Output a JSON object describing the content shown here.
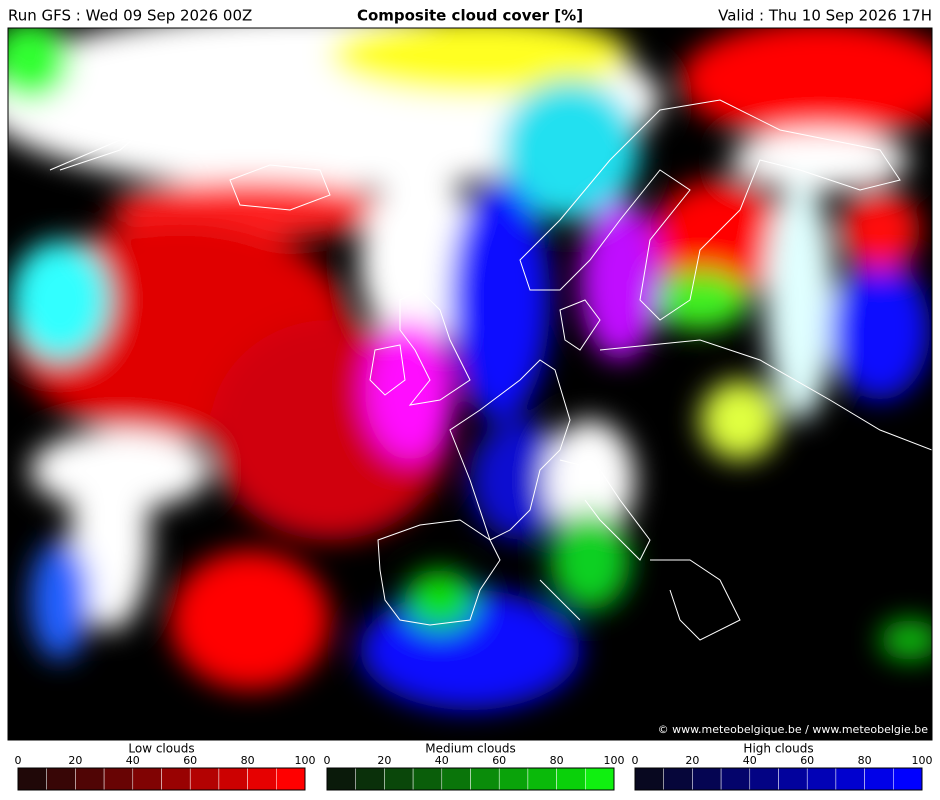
{
  "header": {
    "run": "Run GFS : Wed 09 Sep 2026 00Z",
    "title": "Composite cloud cover [%]",
    "valid": "Valid : Thu 10 Sep 2026 17H"
  },
  "credit": "© www.meteobelgique.be / www.meteobelgie.be",
  "legends": [
    {
      "title": "Low clouds",
      "ticks": [
        0,
        20,
        40,
        60,
        80,
        100
      ],
      "colors": [
        "#200808",
        "#380606",
        "#500505",
        "#680404",
        "#800303",
        "#990202",
        "#b30202",
        "#cc0101",
        "#e60101",
        "#ff0000"
      ]
    },
    {
      "title": "Medium clouds",
      "ticks": [
        0,
        20,
        40,
        60,
        80,
        100
      ],
      "colors": [
        "#0a1a0a",
        "#0a300a",
        "#0a470a",
        "#0a5e0a",
        "#0a750a",
        "#0a8c0a",
        "#0aa30a",
        "#0aba0a",
        "#0ad10a",
        "#10f010"
      ]
    },
    {
      "title": "High clouds",
      "ticks": [
        0,
        20,
        40,
        60,
        80,
        100
      ],
      "colors": [
        "#080820",
        "#06063a",
        "#050552",
        "#04046b",
        "#030384",
        "#02029d",
        "#0202b6",
        "#0101cf",
        "#0101e8",
        "#0000ff"
      ]
    }
  ]
}
